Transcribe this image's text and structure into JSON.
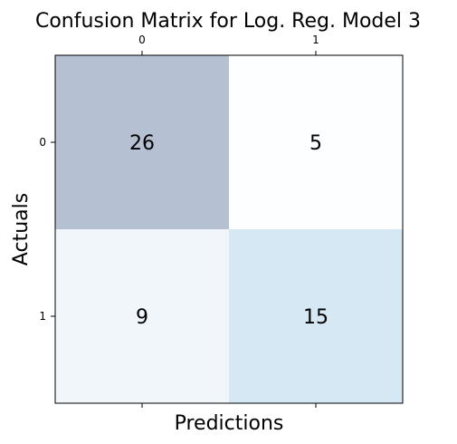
{
  "chart_data": {
    "type": "heatmap",
    "title": "Confusion Matrix for Log. Reg. Model 3",
    "xlabel": "Predictions",
    "ylabel": "Actuals",
    "x_ticks": [
      "0",
      "1"
    ],
    "y_ticks": [
      "0",
      "1"
    ],
    "matrix": [
      [
        26,
        5
      ],
      [
        9,
        15
      ]
    ],
    "colormap": "Blues",
    "cell_alpha": 0.3,
    "x_tick_position": "top and bottom",
    "grid": false
  }
}
